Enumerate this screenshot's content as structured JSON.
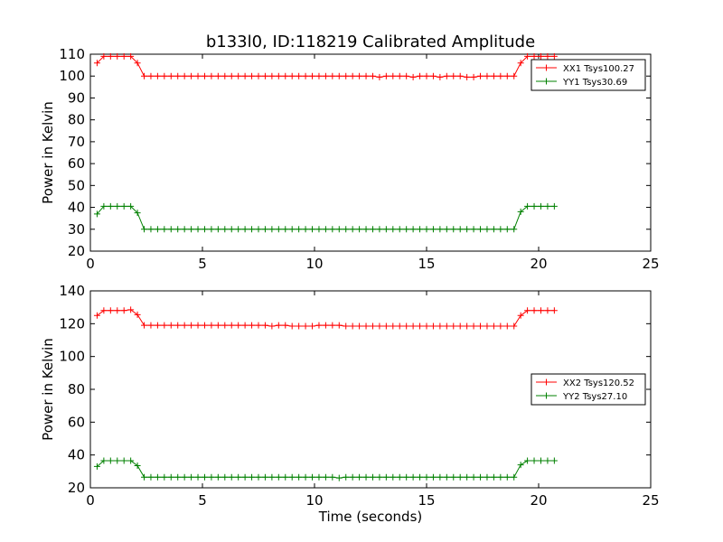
{
  "figure": {
    "title": "b133l0, ID:118219 Calibrated Amplitude"
  },
  "chart_data": [
    {
      "type": "line",
      "title": "b133l0, ID:118219 Calibrated Amplitude",
      "xlabel": "",
      "ylabel": "Power in Kelvin",
      "xlim": [
        0,
        25
      ],
      "ylim": [
        20,
        110
      ],
      "xticks": [
        "0",
        "5",
        "10",
        "15",
        "20",
        "25"
      ],
      "yticks": [
        "20",
        "30",
        "40",
        "50",
        "60",
        "70",
        "80",
        "90",
        "100",
        "110"
      ],
      "grid": false,
      "legend_position": "top-right",
      "series": [
        {
          "name": "XX1 Tsys100.27",
          "color": "#ff0000",
          "marker": "+",
          "x": [
            0.3,
            0.6,
            0.9,
            1.2,
            1.5,
            1.8,
            2.1,
            2.4,
            2.7,
            3.0,
            3.3,
            3.6,
            3.9,
            4.2,
            4.5,
            4.8,
            5.1,
            5.4,
            5.7,
            6.0,
            6.3,
            6.6,
            6.9,
            7.2,
            7.5,
            7.8,
            8.1,
            8.4,
            8.7,
            9.0,
            9.3,
            9.6,
            9.9,
            10.2,
            10.5,
            10.8,
            11.1,
            11.4,
            11.7,
            12.0,
            12.3,
            12.6,
            12.9,
            13.2,
            13.5,
            13.8,
            14.1,
            14.4,
            14.7,
            15.0,
            15.3,
            15.6,
            15.9,
            16.2,
            16.5,
            16.8,
            17.1,
            17.4,
            17.7,
            18.0,
            18.3,
            18.6,
            18.9,
            19.2,
            19.5,
            19.8,
            20.1,
            20.4,
            20.7
          ],
          "y": [
            106,
            109,
            109,
            109,
            109,
            109,
            106,
            100,
            100,
            100,
            100,
            100,
            100,
            100,
            100,
            100,
            100,
            100,
            100,
            100,
            100,
            100,
            100,
            100,
            100,
            100,
            100,
            100,
            100,
            100,
            100,
            100,
            100,
            100,
            100,
            100,
            100,
            100,
            100,
            100,
            100,
            100,
            99.5,
            100,
            100,
            100,
            100,
            99.5,
            100,
            100,
            100,
            99.5,
            100,
            100,
            100,
            99.5,
            99.5,
            100,
            100,
            100,
            100,
            100,
            100,
            106,
            109,
            109,
            109,
            109,
            109
          ]
        },
        {
          "name": "YY1 Tsys30.69",
          "color": "#008000",
          "marker": "+",
          "x": [
            0.3,
            0.6,
            0.9,
            1.2,
            1.5,
            1.8,
            2.1,
            2.4,
            2.7,
            3.0,
            3.3,
            3.6,
            3.9,
            4.2,
            4.5,
            4.8,
            5.1,
            5.4,
            5.7,
            6.0,
            6.3,
            6.6,
            6.9,
            7.2,
            7.5,
            7.8,
            8.1,
            8.4,
            8.7,
            9.0,
            9.3,
            9.6,
            9.9,
            10.2,
            10.5,
            10.8,
            11.1,
            11.4,
            11.7,
            12.0,
            12.3,
            12.6,
            12.9,
            13.2,
            13.5,
            13.8,
            14.1,
            14.4,
            14.7,
            15.0,
            15.3,
            15.6,
            15.9,
            16.2,
            16.5,
            16.8,
            17.1,
            17.4,
            17.7,
            18.0,
            18.3,
            18.6,
            18.9,
            19.2,
            19.5,
            19.8,
            20.1,
            20.4,
            20.7
          ],
          "y": [
            37,
            40.5,
            40.5,
            40.5,
            40.5,
            40.5,
            37.5,
            30,
            30,
            30,
            30,
            30,
            30,
            30,
            30,
            30,
            30,
            30,
            30,
            30,
            30,
            30,
            30,
            30,
            30,
            30,
            30,
            30,
            30,
            30,
            30,
            30,
            30,
            30,
            30,
            30,
            30,
            30,
            30,
            30,
            30,
            30,
            30,
            30,
            30,
            30,
            30,
            30,
            30,
            30,
            30,
            30,
            30,
            30,
            30,
            30,
            30,
            30,
            30,
            30,
            30,
            30,
            30,
            38,
            40.5,
            40.5,
            40.5,
            40.5,
            40.5
          ]
        }
      ]
    },
    {
      "type": "line",
      "title": "",
      "xlabel": "Time (seconds)",
      "ylabel": "Power in Kelvin",
      "xlim": [
        0,
        25
      ],
      "ylim": [
        20,
        140
      ],
      "xticks": [
        "0",
        "5",
        "10",
        "15",
        "20",
        "25"
      ],
      "yticks": [
        "20",
        "40",
        "60",
        "80",
        "100",
        "120",
        "140"
      ],
      "grid": false,
      "legend_position": "center-right",
      "series": [
        {
          "name": "XX2 Tsys120.52",
          "color": "#ff0000",
          "marker": "+",
          "x": [
            0.3,
            0.6,
            0.9,
            1.2,
            1.5,
            1.8,
            2.1,
            2.4,
            2.7,
            3.0,
            3.3,
            3.6,
            3.9,
            4.2,
            4.5,
            4.8,
            5.1,
            5.4,
            5.7,
            6.0,
            6.3,
            6.6,
            6.9,
            7.2,
            7.5,
            7.8,
            8.1,
            8.4,
            8.7,
            9.0,
            9.3,
            9.6,
            9.9,
            10.2,
            10.5,
            10.8,
            11.1,
            11.4,
            11.7,
            12.0,
            12.3,
            12.6,
            12.9,
            13.2,
            13.5,
            13.8,
            14.1,
            14.4,
            14.7,
            15.0,
            15.3,
            15.6,
            15.9,
            16.2,
            16.5,
            16.8,
            17.1,
            17.4,
            17.7,
            18.0,
            18.3,
            18.6,
            18.9,
            19.2,
            19.5,
            19.8,
            20.1,
            20.4,
            20.7
          ],
          "y": [
            125,
            128,
            128,
            128,
            128,
            128.5,
            125.5,
            119,
            119,
            119,
            119,
            119,
            119,
            119,
            119,
            119,
            119,
            119,
            119,
            119,
            119,
            119,
            119,
            119,
            119,
            119,
            118.5,
            119,
            119,
            118.5,
            118.5,
            118.5,
            118.5,
            119,
            119,
            119,
            119,
            118.5,
            118.5,
            118.5,
            118.5,
            118.5,
            118.5,
            118.5,
            118.5,
            118.5,
            118.5,
            118.5,
            118.5,
            118.5,
            118.5,
            118.5,
            118.5,
            118.5,
            118.5,
            118.5,
            118.5,
            118.5,
            118.5,
            118.5,
            118.5,
            118.5,
            118.5,
            125,
            128,
            128,
            128,
            128,
            128
          ]
        },
        {
          "name": "YY2 Tsys27.10",
          "color": "#008000",
          "marker": "+",
          "x": [
            0.3,
            0.6,
            0.9,
            1.2,
            1.5,
            1.8,
            2.1,
            2.4,
            2.7,
            3.0,
            3.3,
            3.6,
            3.9,
            4.2,
            4.5,
            4.8,
            5.1,
            5.4,
            5.7,
            6.0,
            6.3,
            6.6,
            6.9,
            7.2,
            7.5,
            7.8,
            8.1,
            8.4,
            8.7,
            9.0,
            9.3,
            9.6,
            9.9,
            10.2,
            10.5,
            10.8,
            11.1,
            11.4,
            11.7,
            12.0,
            12.3,
            12.6,
            12.9,
            13.2,
            13.5,
            13.8,
            14.1,
            14.4,
            14.7,
            15.0,
            15.3,
            15.6,
            15.9,
            16.2,
            16.5,
            16.8,
            17.1,
            17.4,
            17.7,
            18.0,
            18.3,
            18.6,
            18.9,
            19.2,
            19.5,
            19.8,
            20.1,
            20.4,
            20.7
          ],
          "y": [
            33,
            36.5,
            36.5,
            36.5,
            36.5,
            36.5,
            33.5,
            26.5,
            26.5,
            26.5,
            26.5,
            26.5,
            26.5,
            26.5,
            26.5,
            26.5,
            26.5,
            26.5,
            26.5,
            26.5,
            26.5,
            26.5,
            26.5,
            26.5,
            26.5,
            26.5,
            26.5,
            26.5,
            26.5,
            26.5,
            26.5,
            26.5,
            26.5,
            26.5,
            26.5,
            26.5,
            26,
            26.5,
            26.5,
            26.5,
            26.5,
            26.5,
            26.5,
            26.5,
            26.5,
            26.5,
            26.5,
            26.5,
            26.5,
            26.5,
            26.5,
            26.5,
            26.5,
            26.5,
            26.5,
            26.5,
            26.5,
            26.5,
            26.5,
            26.5,
            26.5,
            26.5,
            26.5,
            34,
            36.5,
            36.5,
            36.5,
            36.5,
            36.5
          ]
        }
      ]
    }
  ]
}
